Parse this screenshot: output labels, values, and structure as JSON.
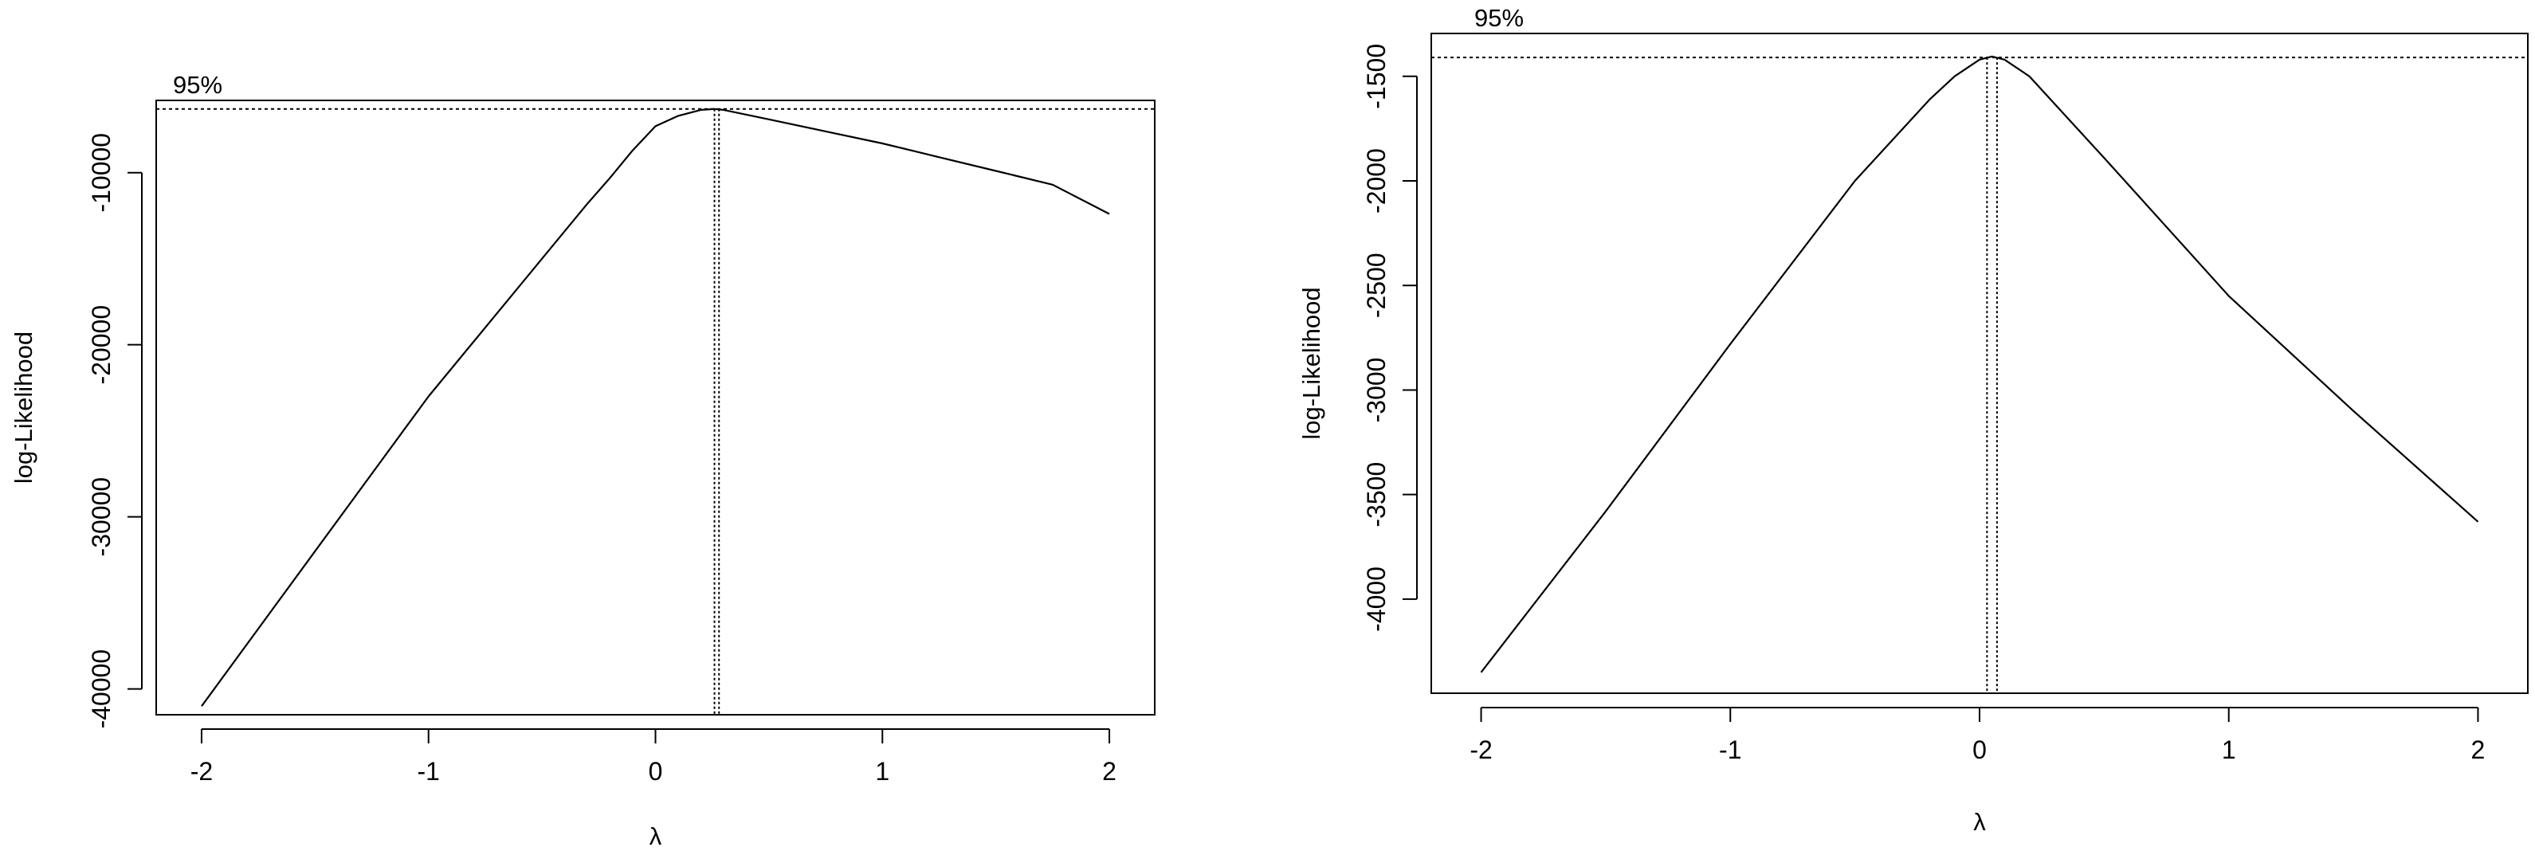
{
  "chart_data": [
    {
      "type": "line",
      "xlabel": "λ",
      "ylabel": "log-Likelihood",
      "xlim": [
        -2.2,
        2.2
      ],
      "ylim": [
        -41500,
        -5800
      ],
      "xticks": [
        -2,
        -1,
        0,
        1,
        2
      ],
      "yticks": [
        -40000,
        -30000,
        -20000,
        -10000
      ],
      "xtick_labels": [
        "-2",
        "-1",
        "0",
        "1",
        "2"
      ],
      "ytick_labels": [
        "-40000",
        "-30000",
        "-20000",
        "-10000"
      ],
      "ci_label": "95%",
      "ci_level": -6300,
      "mle_lines": [
        0.26,
        0.28
      ],
      "series": [
        {
          "x": [
            -2.0,
            -1.5,
            -1.0,
            -0.5,
            -0.3,
            -0.2,
            -0.1,
            0.0,
            0.1,
            0.2,
            0.26,
            0.3,
            0.5,
            0.75,
            1.0,
            1.25,
            1.5,
            1.75,
            2.0
          ],
          "y": [
            -41000,
            -32000,
            -23000,
            -15000,
            -11800,
            -10300,
            -8700,
            -7300,
            -6700,
            -6350,
            -6300,
            -6350,
            -6900,
            -7600,
            -8300,
            -9100,
            -9900,
            -10700,
            -12400
          ]
        }
      ]
    },
    {
      "type": "line",
      "xlabel": "λ",
      "ylabel": "log-Likelihood",
      "xlim": [
        -2.2,
        2.2
      ],
      "ylim": [
        -4450,
        -1295
      ],
      "xticks": [
        -2,
        -1,
        0,
        1,
        2
      ],
      "yticks": [
        -4000,
        -3500,
        -3000,
        -2500,
        -2000,
        -1500
      ],
      "xtick_labels": [
        "-2",
        "-1",
        "0",
        "1",
        "2"
      ],
      "ytick_labels": [
        "-4000",
        "-3500",
        "-3000",
        "-2500",
        "-2000",
        "-1500"
      ],
      "ci_label": "95%",
      "ci_level": -1410,
      "mle_lines": [
        0.03,
        0.07
      ],
      "series": [
        {
          "x": [
            -2.0,
            -1.5,
            -1.0,
            -0.5,
            -0.2,
            -0.1,
            0.0,
            0.05,
            0.1,
            0.2,
            0.5,
            1.0,
            1.5,
            2.0
          ],
          "y": [
            -4350,
            -3580,
            -2780,
            -2000,
            -1610,
            -1500,
            -1420,
            -1405,
            -1420,
            -1500,
            -1890,
            -2550,
            -3100,
            -3630
          ]
        }
      ]
    }
  ]
}
